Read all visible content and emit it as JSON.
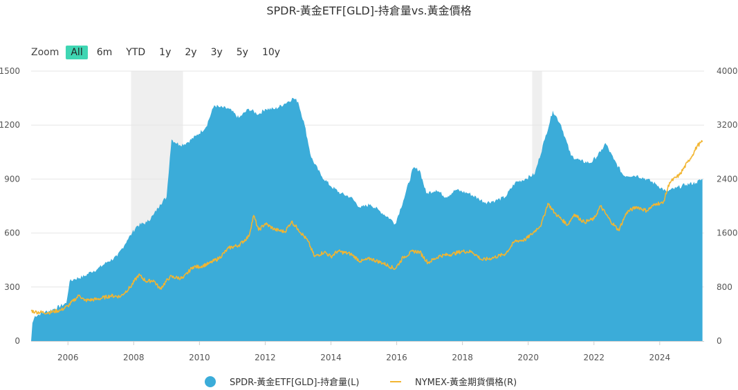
{
  "title": "SPDR-黃金ETF[GLD]-持倉量vs.黃金價格",
  "zoom": {
    "label": "Zoom",
    "buttons": [
      "All",
      "6m",
      "YTD",
      "1y",
      "2y",
      "3y",
      "5y",
      "10y"
    ],
    "active": "All"
  },
  "colors": {
    "area": "#3bacd9",
    "line": "#f2b531",
    "recession": "#efefef",
    "grid": "#e6e6e6"
  },
  "chart_data": {
    "type": "area",
    "title": "SPDR-黃金ETF[GLD]-持倉量vs.黃金價格",
    "x_tick_labels": [
      "2006",
      "2008",
      "2010",
      "2012",
      "2014",
      "2016",
      "2018",
      "2020",
      "2022",
      "2024"
    ],
    "x_range": [
      2004.88,
      2025.35
    ],
    "y_left": {
      "ticks": [
        0,
        300,
        600,
        900,
        1200,
        1500
      ],
      "range": [
        0,
        1500
      ]
    },
    "y_right": {
      "ticks": [
        0,
        800,
        1600,
        2400,
        3200,
        4000
      ],
      "range": [
        0,
        4000
      ]
    },
    "shaded_periods": [
      [
        2007.92,
        2009.5
      ],
      [
        2020.12,
        2020.42
      ]
    ],
    "legend": {
      "position": "bottom"
    },
    "series": [
      {
        "name": "SPDR-黃金ETF[GLD]-持倉量(L)",
        "type": "area",
        "axis": "left",
        "points": [
          [
            2004.88,
            0
          ],
          [
            2004.92,
            100
          ],
          [
            2005.0,
            140
          ],
          [
            2005.3,
            160
          ],
          [
            2005.6,
            180
          ],
          [
            2005.95,
            210
          ],
          [
            2006.05,
            330
          ],
          [
            2006.2,
            345
          ],
          [
            2006.5,
            360
          ],
          [
            2006.7,
            385
          ],
          [
            2006.9,
            400
          ],
          [
            2007.2,
            440
          ],
          [
            2007.5,
            470
          ],
          [
            2007.8,
            560
          ],
          [
            2007.95,
            600
          ],
          [
            2008.1,
            640
          ],
          [
            2008.4,
            660
          ],
          [
            2008.6,
            700
          ],
          [
            2008.8,
            760
          ],
          [
            2009.0,
            800
          ],
          [
            2009.1,
            1020
          ],
          [
            2009.15,
            1120
          ],
          [
            2009.4,
            1090
          ],
          [
            2009.6,
            1100
          ],
          [
            2009.9,
            1140
          ],
          [
            2010.2,
            1190
          ],
          [
            2010.45,
            1310
          ],
          [
            2010.6,
            1300
          ],
          [
            2010.9,
            1290
          ],
          [
            2011.2,
            1240
          ],
          [
            2011.5,
            1290
          ],
          [
            2011.8,
            1260
          ],
          [
            2012.0,
            1290
          ],
          [
            2012.3,
            1290
          ],
          [
            2012.6,
            1320
          ],
          [
            2012.85,
            1350
          ],
          [
            2013.0,
            1330
          ],
          [
            2013.2,
            1200
          ],
          [
            2013.4,
            1020
          ],
          [
            2013.7,
            920
          ],
          [
            2014.0,
            860
          ],
          [
            2014.3,
            820
          ],
          [
            2014.6,
            800
          ],
          [
            2014.9,
            740
          ],
          [
            2015.2,
            760
          ],
          [
            2015.5,
            720
          ],
          [
            2015.8,
            680
          ],
          [
            2015.95,
            650
          ],
          [
            2016.2,
            780
          ],
          [
            2016.5,
            960
          ],
          [
            2016.7,
            950
          ],
          [
            2016.9,
            820
          ],
          [
            2017.2,
            840
          ],
          [
            2017.5,
            800
          ],
          [
            2017.8,
            840
          ],
          [
            2018.2,
            820
          ],
          [
            2018.5,
            790
          ],
          [
            2018.7,
            770
          ],
          [
            2019.0,
            780
          ],
          [
            2019.3,
            800
          ],
          [
            2019.6,
            880
          ],
          [
            2019.9,
            900
          ],
          [
            2020.2,
            930
          ],
          [
            2020.5,
            1120
          ],
          [
            2020.75,
            1280
          ],
          [
            2021.0,
            1200
          ],
          [
            2021.3,
            1030
          ],
          [
            2021.6,
            1000
          ],
          [
            2021.9,
            990
          ],
          [
            2022.2,
            1050
          ],
          [
            2022.35,
            1100
          ],
          [
            2022.6,
            1010
          ],
          [
            2022.9,
            920
          ],
          [
            2023.3,
            920
          ],
          [
            2023.6,
            900
          ],
          [
            2023.9,
            870
          ],
          [
            2024.2,
            830
          ],
          [
            2024.5,
            850
          ],
          [
            2024.8,
            870
          ],
          [
            2025.1,
            880
          ],
          [
            2025.3,
            900
          ],
          [
            2025.3,
            0
          ]
        ]
      },
      {
        "name": "NYMEX-黃金期貨價格(R)",
        "type": "line",
        "axis": "right",
        "points": [
          [
            2004.88,
            450
          ],
          [
            2005.0,
            430
          ],
          [
            2005.4,
            420
          ],
          [
            2005.8,
            460
          ],
          [
            2006.0,
            520
          ],
          [
            2006.35,
            680
          ],
          [
            2006.5,
            600
          ],
          [
            2006.9,
            620
          ],
          [
            2007.3,
            670
          ],
          [
            2007.6,
            660
          ],
          [
            2007.9,
            800
          ],
          [
            2008.15,
            980
          ],
          [
            2008.4,
            880
          ],
          [
            2008.6,
            900
          ],
          [
            2008.8,
            770
          ],
          [
            2009.1,
            950
          ],
          [
            2009.5,
            930
          ],
          [
            2009.8,
            1100
          ],
          [
            2010.0,
            1100
          ],
          [
            2010.3,
            1150
          ],
          [
            2010.6,
            1230
          ],
          [
            2010.9,
            1380
          ],
          [
            2011.2,
            1420
          ],
          [
            2011.5,
            1550
          ],
          [
            2011.65,
            1860
          ],
          [
            2011.8,
            1640
          ],
          [
            2012.0,
            1740
          ],
          [
            2012.3,
            1650
          ],
          [
            2012.6,
            1620
          ],
          [
            2012.8,
            1770
          ],
          [
            2013.0,
            1660
          ],
          [
            2013.3,
            1480
          ],
          [
            2013.5,
            1250
          ],
          [
            2013.8,
            1320
          ],
          [
            2014.0,
            1250
          ],
          [
            2014.2,
            1330
          ],
          [
            2014.6,
            1290
          ],
          [
            2014.9,
            1180
          ],
          [
            2015.2,
            1220
          ],
          [
            2015.6,
            1150
          ],
          [
            2015.95,
            1070
          ],
          [
            2016.2,
            1240
          ],
          [
            2016.5,
            1330
          ],
          [
            2016.7,
            1320
          ],
          [
            2016.95,
            1160
          ],
          [
            2017.3,
            1260
          ],
          [
            2017.7,
            1290
          ],
          [
            2018.0,
            1330
          ],
          [
            2018.3,
            1320
          ],
          [
            2018.6,
            1200
          ],
          [
            2018.9,
            1230
          ],
          [
            2019.3,
            1290
          ],
          [
            2019.6,
            1480
          ],
          [
            2019.9,
            1500
          ],
          [
            2020.1,
            1580
          ],
          [
            2020.4,
            1730
          ],
          [
            2020.6,
            2040
          ],
          [
            2020.8,
            1900
          ],
          [
            2021.2,
            1720
          ],
          [
            2021.4,
            1880
          ],
          [
            2021.7,
            1760
          ],
          [
            2022.0,
            1810
          ],
          [
            2022.2,
            2000
          ],
          [
            2022.5,
            1780
          ],
          [
            2022.75,
            1640
          ],
          [
            2023.0,
            1910
          ],
          [
            2023.3,
            1990
          ],
          [
            2023.6,
            1930
          ],
          [
            2023.9,
            2040
          ],
          [
            2024.1,
            2040
          ],
          [
            2024.3,
            2350
          ],
          [
            2024.6,
            2460
          ],
          [
            2024.85,
            2650
          ],
          [
            2025.0,
            2760
          ],
          [
            2025.15,
            2900
          ],
          [
            2025.3,
            2950
          ]
        ]
      }
    ]
  }
}
